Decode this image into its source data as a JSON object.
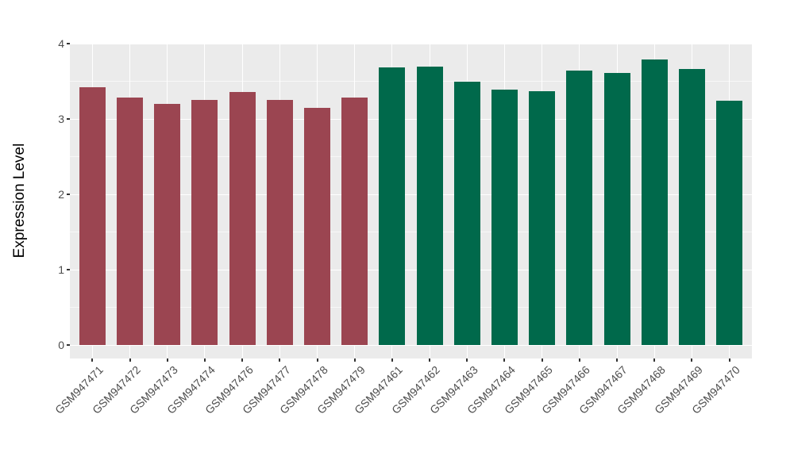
{
  "chart_data": {
    "type": "bar",
    "title": "",
    "xlabel": "",
    "ylabel": "Expression Level",
    "ylim": [
      0,
      4
    ],
    "y_major_ticks": [
      0,
      1,
      2,
      3,
      4
    ],
    "y_minor_ticks": [
      0.5,
      1.5,
      2.5,
      3.5
    ],
    "grid": "on",
    "legend_position": "none",
    "categories": [
      "GSM947471",
      "GSM947472",
      "GSM947473",
      "GSM947474",
      "GSM947476",
      "GSM947477",
      "GSM947478",
      "GSM947479",
      "GSM947461",
      "GSM947462",
      "GSM947463",
      "GSM947464",
      "GSM947465",
      "GSM947466",
      "GSM947467",
      "GSM947468",
      "GSM947469",
      "GSM947470"
    ],
    "values": [
      3.42,
      3.28,
      3.2,
      3.25,
      3.36,
      3.25,
      3.15,
      3.28,
      3.68,
      3.7,
      3.5,
      3.39,
      3.37,
      3.64,
      3.61,
      3.79,
      3.66,
      3.24
    ],
    "groups": [
      "group1",
      "group1",
      "group1",
      "group1",
      "group1",
      "group1",
      "group1",
      "group1",
      "group2",
      "group2",
      "group2",
      "group2",
      "group2",
      "group2",
      "group2",
      "group2",
      "group2",
      "group2"
    ],
    "colors": {
      "group1": "#9b4551",
      "group2": "#00694b"
    },
    "style": {
      "panel_bg": "#ebebeb",
      "grid_color": "#ffffff",
      "tick_text_color": "#4d4d4d",
      "tick_mark_color": "#333333",
      "axis_title_color": "#000000",
      "background": "#ffffff"
    }
  }
}
